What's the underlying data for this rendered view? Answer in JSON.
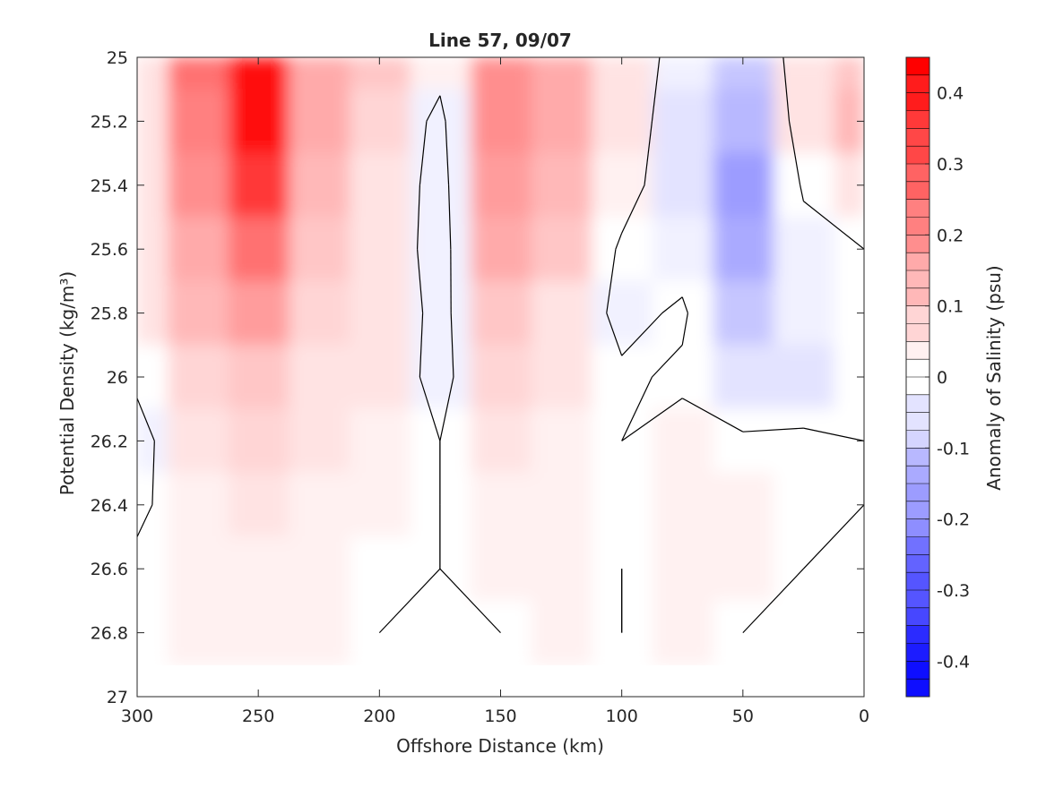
{
  "chart_data": {
    "type": "heatmap",
    "title": "Line 57, 09/07",
    "xlabel": "Offshore Distance (km)",
    "ylabel": "Potential Density (kg/m³)",
    "x_reversed": true,
    "xlim": [
      0,
      300
    ],
    "ylim": [
      25,
      27
    ],
    "y_reversed": true,
    "x_ticks": [
      "300",
      "250",
      "200",
      "150",
      "100",
      "50",
      "0"
    ],
    "y_ticks": [
      "25",
      "25.2",
      "25.4",
      "25.6",
      "25.8",
      "26",
      "26.2",
      "26.4",
      "26.6",
      "26.8",
      "27"
    ],
    "grid": false,
    "colorbar": {
      "label": "Anomaly of Salinity (psu)",
      "range": [
        -0.45,
        0.45
      ],
      "step": 0.025,
      "ticks": [
        "0.4",
        "0.3",
        "0.2",
        "0.1",
        "0",
        "-0.1",
        "-0.2",
        "-0.3",
        "-0.4"
      ],
      "colormap": "blue-white-red",
      "high_color": "#ff0000",
      "low_color": "#0000ff"
    },
    "x": [
      0,
      25,
      50,
      75,
      100,
      125,
      150,
      175,
      200,
      225,
      250,
      275,
      300
    ],
    "y": [
      25.0,
      25.2,
      25.4,
      25.6,
      25.8,
      26.0,
      26.2,
      26.4,
      26.6,
      26.8
    ],
    "z": [
      [
        0.1,
        0.05,
        -0.1,
        -0.03,
        0.05,
        0.15,
        0.2,
        0.03,
        0.1,
        0.15,
        0.42,
        0.25,
        0.05
      ],
      [
        0.12,
        0.04,
        -0.13,
        -0.04,
        0.04,
        0.14,
        0.2,
        -0.02,
        0.07,
        0.14,
        0.42,
        0.22,
        0.05
      ],
      [
        0.05,
        0.01,
        -0.17,
        -0.05,
        0.03,
        0.13,
        0.18,
        -0.03,
        0.06,
        0.13,
        0.35,
        0.2,
        0.04
      ],
      [
        0.0,
        -0.03,
        -0.16,
        -0.03,
        -0.01,
        0.09,
        0.14,
        -0.03,
        0.05,
        0.09,
        0.26,
        0.14,
        0.05
      ],
      [
        -0.01,
        -0.03,
        -0.1,
        0.01,
        -0.02,
        0.06,
        0.09,
        -0.02,
        0.05,
        0.07,
        0.18,
        0.12,
        0.05
      ],
      [
        -0.01,
        -0.04,
        -0.06,
        -0.01,
        0.01,
        0.05,
        0.07,
        -0.02,
        0.04,
        0.06,
        0.1,
        0.07,
        0.01
      ],
      [
        0.0,
        0.01,
        0.01,
        0.02,
        0.0,
        0.03,
        0.05,
        0.0,
        0.03,
        0.04,
        0.08,
        0.05,
        -0.02
      ],
      [
        0.0,
        0.01,
        0.02,
        0.03,
        0.01,
        0.02,
        0.03,
        0.0,
        0.03,
        0.03,
        0.05,
        0.03,
        -0.01
      ],
      [
        0.0,
        0.0,
        0.02,
        0.02,
        0.0,
        0.03,
        0.03,
        0.0,
        0.01,
        0.03,
        0.03,
        0.03,
        0.01
      ],
      [
        0.0,
        0.0,
        0.0,
        0.02,
        0.0,
        0.02,
        0.0,
        0.0,
        0.0,
        0.02,
        0.03,
        0.02,
        0.0
      ]
    ]
  }
}
